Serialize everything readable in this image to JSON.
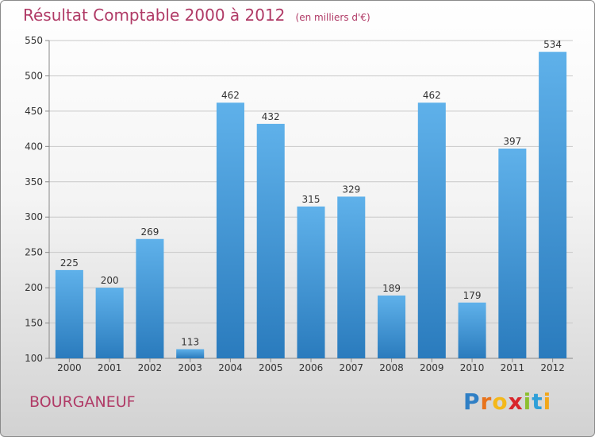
{
  "title": "Résultat Comptable 2000 à 2012",
  "unit": "(en milliers d'€)",
  "place": "BOURGANEUF",
  "logo": {
    "letters": [
      "P",
      "r",
      "o",
      "x",
      "i",
      "t",
      "i"
    ],
    "colors": [
      "#2f7fc5",
      "#e8731c",
      "#f4b81a",
      "#d8262c",
      "#8dbf2f",
      "#2f9fd8",
      "#f2a71b"
    ]
  },
  "colors": {
    "bar_light": "#5fb1ea",
    "bar_dark": "#2a7bbd",
    "grid": "#c8c8c8",
    "title": "#b03a66"
  },
  "chart_data": {
    "type": "bar",
    "title": "Résultat Comptable 2000 à 2012",
    "subtitle": "(en milliers d'€)",
    "categories": [
      "2000",
      "2001",
      "2002",
      "2003",
      "2004",
      "2005",
      "2006",
      "2007",
      "2008",
      "2009",
      "2010",
      "2011",
      "2012"
    ],
    "values": [
      225,
      200,
      269,
      113,
      462,
      432,
      315,
      329,
      189,
      462,
      179,
      397,
      534
    ],
    "ylim": [
      100,
      550
    ],
    "yticks": [
      100,
      150,
      200,
      250,
      300,
      350,
      400,
      450,
      500,
      550
    ],
    "grid": true,
    "xlabel": "",
    "ylabel": ""
  }
}
